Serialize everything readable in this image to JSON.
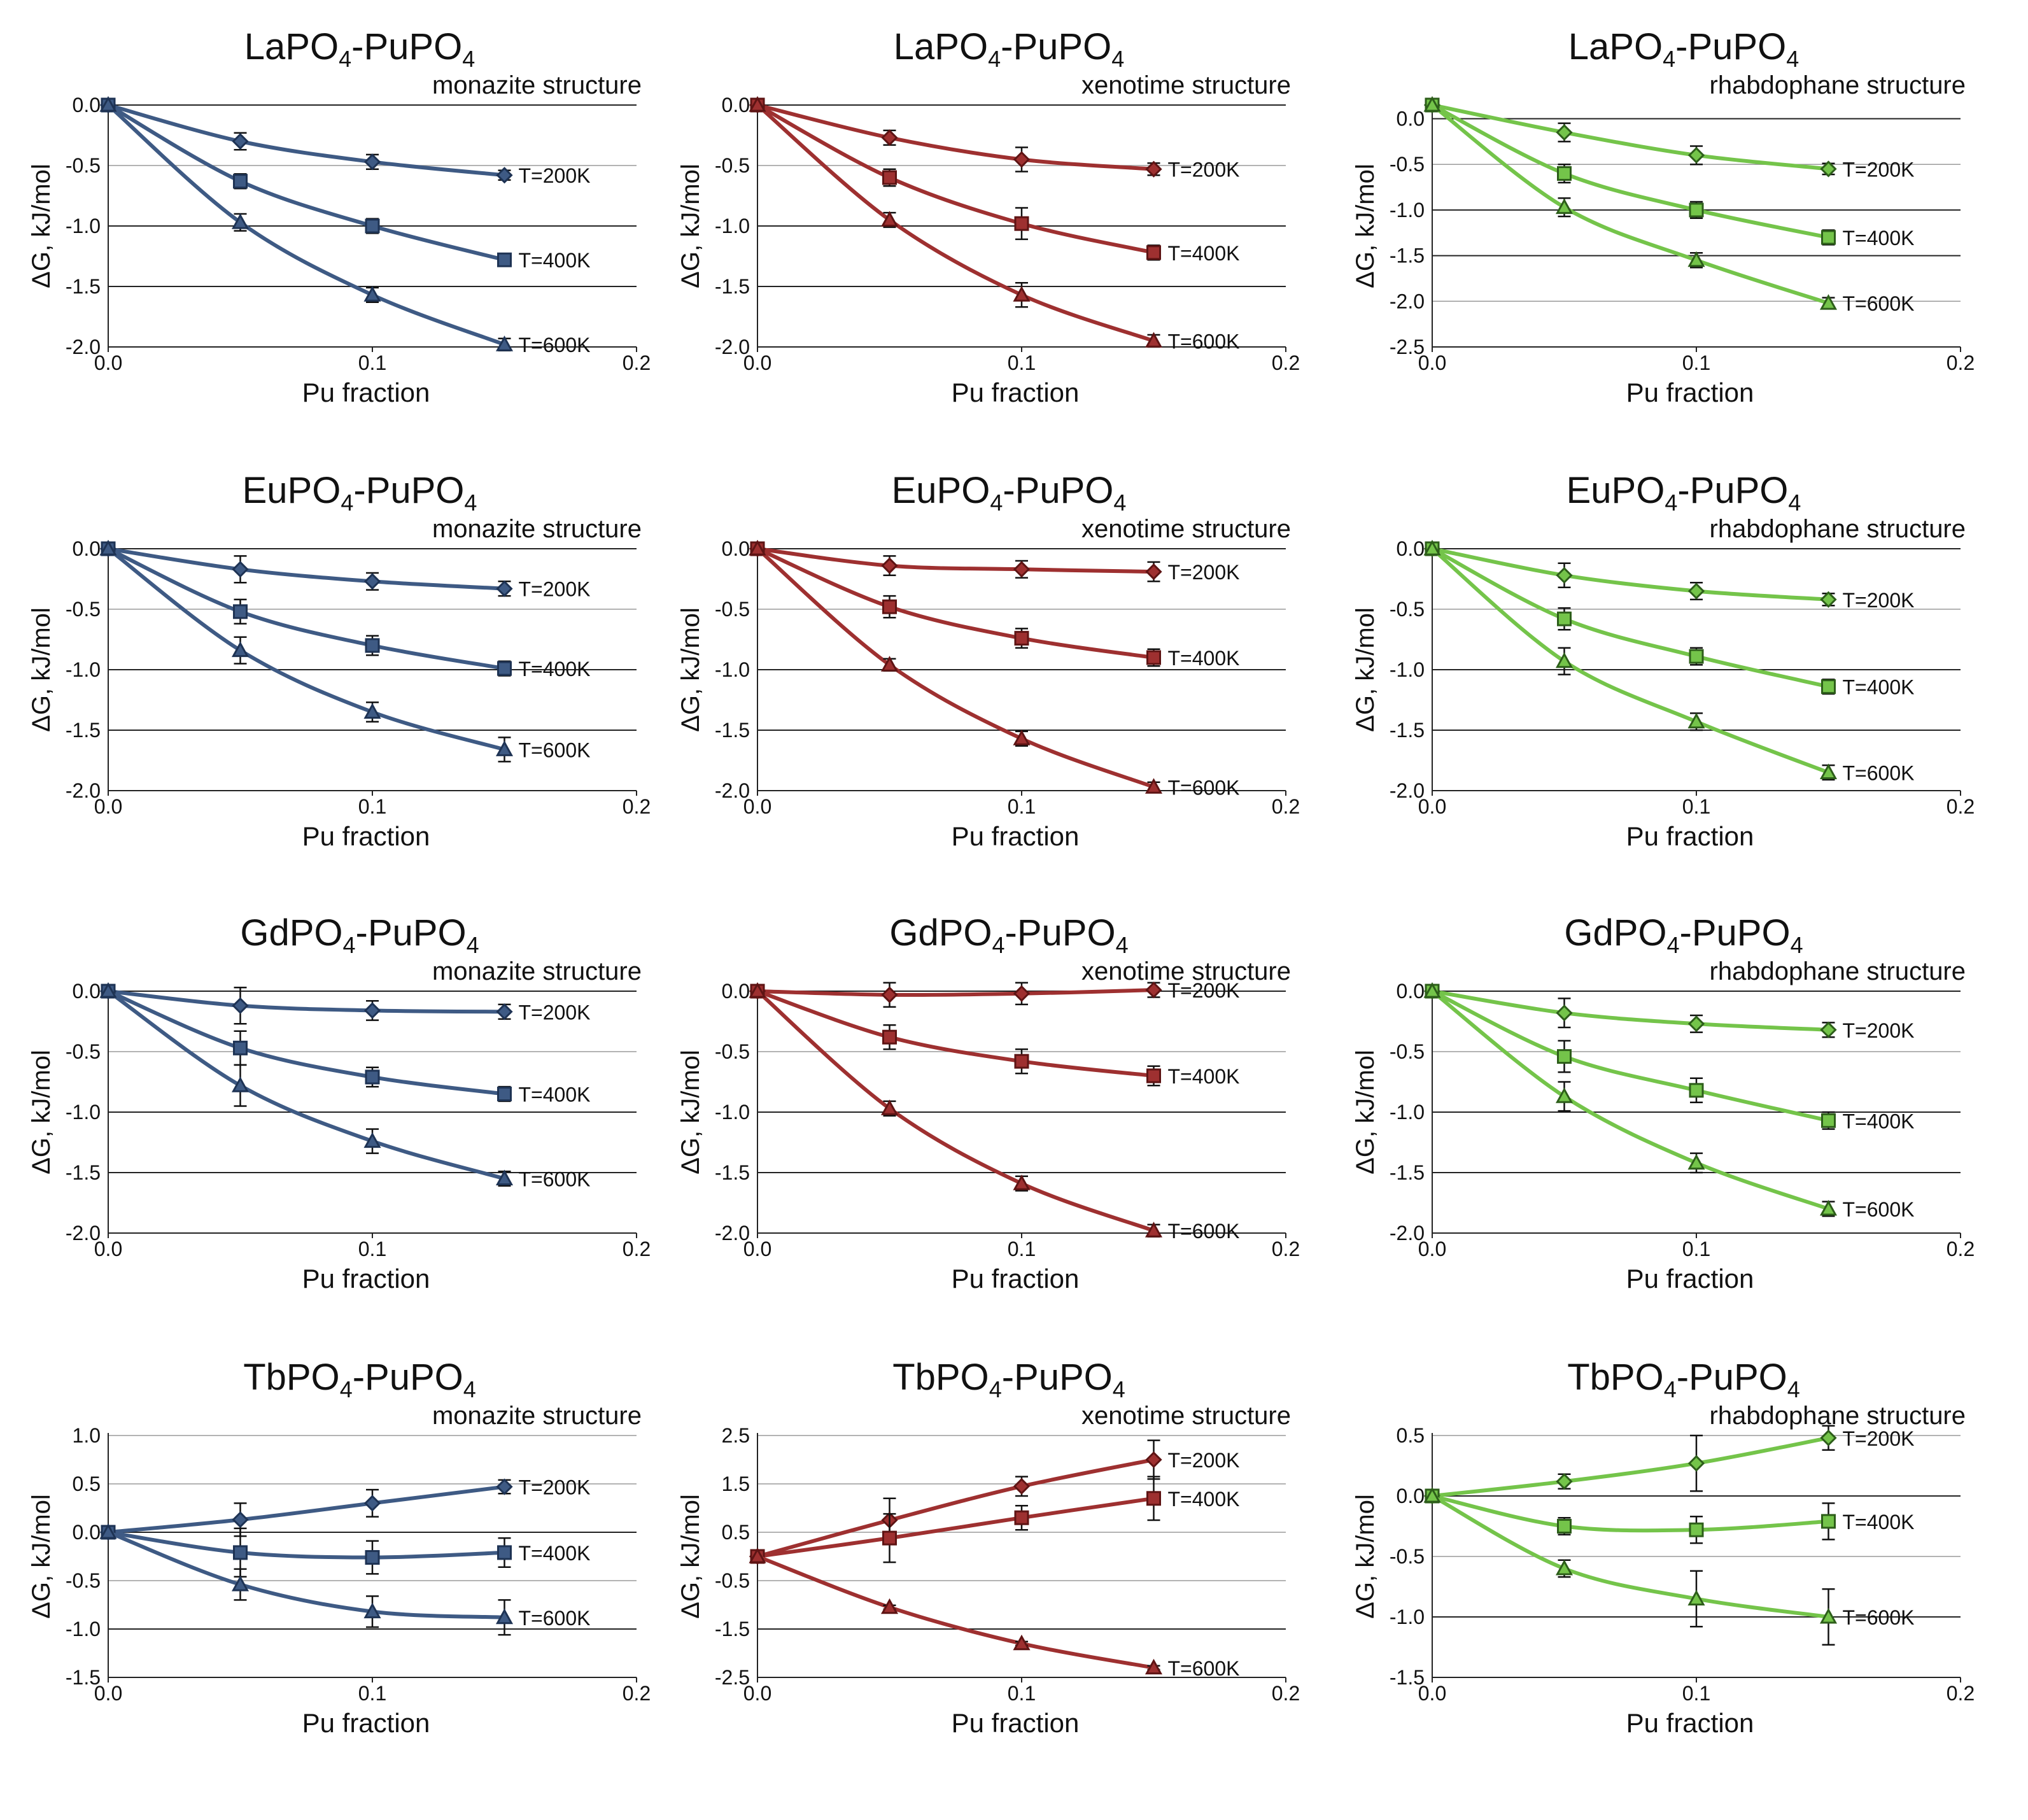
{
  "figure": {
    "axis_x_label": "Pu fraction",
    "axis_y_label": "ΔG, kJ/mol"
  },
  "chart_data": [
    {
      "type": "line",
      "title_parts": [
        "LaPO",
        "4",
        "-PuPO",
        "4"
      ],
      "structure": "monazite structure",
      "xlabel": "Pu fraction",
      "ylabel": "ΔG, kJ/mol",
      "xlim": [
        0,
        0.2
      ],
      "ylim": [
        -2.0,
        0.0
      ],
      "xticks": [
        "0.0",
        "0.1",
        "0.2"
      ],
      "yticks": [
        "0.0",
        "-0.5",
        "-1.0",
        "-1.5",
        "-2.0"
      ],
      "ytick_values": [
        0,
        -0.5,
        -1.0,
        -1.5,
        -2.0
      ],
      "color": "#3e5a84",
      "x": [
        0,
        0.05,
        0.1,
        0.15
      ],
      "series": [
        {
          "name": "T=200K",
          "marker": "diamond",
          "values": [
            0,
            -0.3,
            -0.47,
            -0.58
          ],
          "errors": [
            0,
            0.07,
            0.06,
            0.04
          ]
        },
        {
          "name": "T=400K",
          "marker": "square",
          "values": [
            0,
            -0.63,
            -1.0,
            -1.28
          ],
          "errors": [
            0,
            0.06,
            0.06,
            0.05
          ]
        },
        {
          "name": "T=600K",
          "marker": "triangle",
          "values": [
            0,
            -0.97,
            -1.57,
            -1.98
          ],
          "errors": [
            0,
            0.07,
            0.06,
            0.05
          ]
        }
      ]
    },
    {
      "type": "line",
      "title_parts": [
        "LaPO",
        "4",
        "-PuPO",
        "4"
      ],
      "structure": "xenotime structure",
      "xlabel": "Pu fraction",
      "ylabel": "ΔG, kJ/mol",
      "xlim": [
        0,
        0.2
      ],
      "ylim": [
        -2.0,
        0.0
      ],
      "xticks": [
        "0.0",
        "0.1",
        "0.2"
      ],
      "yticks": [
        "0.0",
        "-0.5",
        "-1.0",
        "-1.5",
        "-2.0"
      ],
      "ytick_values": [
        0,
        -0.5,
        -1.0,
        -1.5,
        -2.0
      ],
      "color": "#9e3030",
      "x": [
        0,
        0.05,
        0.1,
        0.15
      ],
      "series": [
        {
          "name": "T=200K",
          "marker": "diamond",
          "values": [
            0,
            -0.27,
            -0.45,
            -0.53
          ],
          "errors": [
            0,
            0.06,
            0.1,
            0.05
          ]
        },
        {
          "name": "T=400K",
          "marker": "square",
          "values": [
            0,
            -0.6,
            -0.98,
            -1.22
          ],
          "errors": [
            0,
            0.07,
            0.13,
            0.06
          ]
        },
        {
          "name": "T=600K",
          "marker": "triangle",
          "values": [
            0,
            -0.95,
            -1.57,
            -1.95
          ],
          "errors": [
            0,
            0.06,
            0.1,
            0.05
          ]
        }
      ]
    },
    {
      "type": "line",
      "title_parts": [
        "LaPO",
        "4",
        "-PuPO",
        "4"
      ],
      "structure": "rhabdophane structure",
      "xlabel": "Pu fraction",
      "ylabel": "ΔG, kJ/mol",
      "xlim": [
        0,
        0.2
      ],
      "ylim": [
        -2.5,
        0.15
      ],
      "xticks": [
        "0.0",
        "0.1",
        "0.2"
      ],
      "yticks": [
        "0.0",
        "-0.5",
        "-1.0",
        "-1.5",
        "-2.0",
        "-2.5"
      ],
      "ytick_values": [
        0,
        -0.5,
        -1.0,
        -1.5,
        -2.0,
        -2.5
      ],
      "color": "#74c44a",
      "x": [
        0,
        0.05,
        0.1,
        0.15
      ],
      "series": [
        {
          "name": "T=200K",
          "marker": "diamond",
          "values": [
            0.15,
            -0.15,
            -0.4,
            -0.55
          ],
          "errors": [
            0,
            0.1,
            0.1,
            0.06
          ]
        },
        {
          "name": "T=400K",
          "marker": "square",
          "values": [
            0.15,
            -0.6,
            -1.0,
            -1.3
          ],
          "errors": [
            0,
            0.1,
            0.09,
            0.08
          ]
        },
        {
          "name": "T=600K",
          "marker": "triangle",
          "values": [
            0.15,
            -0.97,
            -1.55,
            -2.02
          ],
          "errors": [
            0,
            0.1,
            0.08,
            0.06
          ]
        }
      ]
    },
    {
      "type": "line",
      "title_parts": [
        "EuPO",
        "4",
        "-PuPO",
        "4"
      ],
      "structure": "monazite structure",
      "xlabel": "Pu fraction",
      "ylabel": "ΔG, kJ/mol",
      "xlim": [
        0,
        0.2
      ],
      "ylim": [
        -2.0,
        0.0
      ],
      "xticks": [
        "0.0",
        "0.1",
        "0.2"
      ],
      "yticks": [
        "0.0",
        "-0.5",
        "-1.0",
        "-1.5",
        "-2.0"
      ],
      "ytick_values": [
        0,
        -0.5,
        -1.0,
        -1.5,
        -2.0
      ],
      "color": "#3e5a84",
      "x": [
        0,
        0.05,
        0.1,
        0.15
      ],
      "series": [
        {
          "name": "T=200K",
          "marker": "diamond",
          "values": [
            0,
            -0.17,
            -0.27,
            -0.33
          ],
          "errors": [
            0,
            0.11,
            0.07,
            0.06
          ]
        },
        {
          "name": "T=400K",
          "marker": "square",
          "values": [
            0,
            -0.52,
            -0.8,
            -0.99
          ],
          "errors": [
            0,
            0.1,
            0.08,
            0.06
          ]
        },
        {
          "name": "T=600K",
          "marker": "triangle",
          "values": [
            0,
            -0.84,
            -1.35,
            -1.66
          ],
          "errors": [
            0,
            0.11,
            0.08,
            0.1
          ]
        }
      ]
    },
    {
      "type": "line",
      "title_parts": [
        "EuPO",
        "4",
        "-PuPO",
        "4"
      ],
      "structure": "xenotime structure",
      "xlabel": "Pu fraction",
      "ylabel": "ΔG, kJ/mol",
      "xlim": [
        0,
        0.2
      ],
      "ylim": [
        -2.0,
        0.0
      ],
      "xticks": [
        "0.0",
        "0.1",
        "0.2"
      ],
      "yticks": [
        "0.0",
        "-0.5",
        "-1.0",
        "-1.5",
        "-2.0"
      ],
      "ytick_values": [
        0,
        -0.5,
        -1.0,
        -1.5,
        -2.0
      ],
      "color": "#9e3030",
      "x": [
        0,
        0.05,
        0.1,
        0.15
      ],
      "series": [
        {
          "name": "T=200K",
          "marker": "diamond",
          "values": [
            0,
            -0.14,
            -0.17,
            -0.19
          ],
          "errors": [
            0,
            0.08,
            0.07,
            0.08
          ]
        },
        {
          "name": "T=400K",
          "marker": "square",
          "values": [
            0,
            -0.48,
            -0.74,
            -0.9
          ],
          "errors": [
            0,
            0.09,
            0.08,
            0.07
          ]
        },
        {
          "name": "T=600K",
          "marker": "triangle",
          "values": [
            0,
            -0.96,
            -1.57,
            -1.97
          ],
          "errors": [
            0,
            0.05,
            0.06,
            0.04
          ]
        }
      ]
    },
    {
      "type": "line",
      "title_parts": [
        "EuPO",
        "4",
        "-PuPO",
        "4"
      ],
      "structure": "rhabdophane structure",
      "xlabel": "Pu fraction",
      "ylabel": "ΔG, kJ/mol",
      "xlim": [
        0,
        0.2
      ],
      "ylim": [
        -2.0,
        0.0
      ],
      "xticks": [
        "0.0",
        "0.1",
        "0.2"
      ],
      "yticks": [
        "0.0",
        "-0.5",
        "-1.0",
        "-1.5",
        "-2.0"
      ],
      "ytick_values": [
        0,
        -0.5,
        -1.0,
        -1.5,
        -2.0
      ],
      "color": "#74c44a",
      "x": [
        0,
        0.05,
        0.1,
        0.15
      ],
      "series": [
        {
          "name": "T=200K",
          "marker": "diamond",
          "values": [
            0,
            -0.22,
            -0.35,
            -0.42
          ],
          "errors": [
            0,
            0.1,
            0.07,
            0.05
          ]
        },
        {
          "name": "T=400K",
          "marker": "square",
          "values": [
            0,
            -0.58,
            -0.89,
            -1.14
          ],
          "errors": [
            0,
            0.09,
            0.07,
            0.06
          ]
        },
        {
          "name": "T=600K",
          "marker": "triangle",
          "values": [
            0,
            -0.93,
            -1.43,
            -1.85
          ],
          "errors": [
            0,
            0.11,
            0.07,
            0.06
          ]
        }
      ]
    },
    {
      "type": "line",
      "title_parts": [
        "GdPO",
        "4",
        "-PuPO",
        "4"
      ],
      "structure": "monazite structure",
      "xlabel": "Pu fraction",
      "ylabel": "ΔG, kJ/mol",
      "xlim": [
        0,
        0.2
      ],
      "ylim": [
        -2.0,
        0.0
      ],
      "xticks": [
        "0.0",
        "0.1",
        "0.2"
      ],
      "yticks": [
        "0.0",
        "-0.5",
        "-1.0",
        "-1.5",
        "-2.0"
      ],
      "ytick_values": [
        0,
        -0.5,
        -1.0,
        -1.5,
        -2.0
      ],
      "color": "#3e5a84",
      "x": [
        0,
        0.05,
        0.1,
        0.15
      ],
      "series": [
        {
          "name": "T=200K",
          "marker": "diamond",
          "values": [
            0,
            -0.12,
            -0.16,
            -0.17
          ],
          "errors": [
            0,
            0.15,
            0.08,
            0.06
          ]
        },
        {
          "name": "T=400K",
          "marker": "square",
          "values": [
            0,
            -0.47,
            -0.71,
            -0.85
          ],
          "errors": [
            0,
            0.14,
            0.08,
            0.06
          ]
        },
        {
          "name": "T=600K",
          "marker": "triangle",
          "values": [
            0,
            -0.78,
            -1.24,
            -1.55
          ],
          "errors": [
            0,
            0.17,
            0.1,
            0.06
          ]
        }
      ]
    },
    {
      "type": "line",
      "title_parts": [
        "GdPO",
        "4",
        "-PuPO",
        "4"
      ],
      "structure": "xenotime structure",
      "xlabel": "Pu fraction",
      "ylabel": "ΔG, kJ/mol",
      "xlim": [
        0,
        0.2
      ],
      "ylim": [
        -2.0,
        0.0
      ],
      "xticks": [
        "0.0",
        "0.1",
        "0.2"
      ],
      "yticks": [
        "0.0",
        "-0.5",
        "-1.0",
        "-1.5",
        "-2.0"
      ],
      "ytick_values": [
        0,
        -0.5,
        -1.0,
        -1.5,
        -2.0
      ],
      "color": "#9e3030",
      "x": [
        0,
        0.05,
        0.1,
        0.15
      ],
      "series": [
        {
          "name": "T=200K",
          "marker": "diamond",
          "values": [
            0,
            -0.03,
            -0.02,
            0.01
          ],
          "errors": [
            0,
            0.1,
            0.09,
            0.06
          ]
        },
        {
          "name": "T=400K",
          "marker": "square",
          "values": [
            0,
            -0.38,
            -0.58,
            -0.7
          ],
          "errors": [
            0,
            0.1,
            0.1,
            0.08
          ]
        },
        {
          "name": "T=600K",
          "marker": "triangle",
          "values": [
            0,
            -0.97,
            -1.59,
            -1.98
          ],
          "errors": [
            0,
            0.06,
            0.06,
            0.05
          ]
        }
      ]
    },
    {
      "type": "line",
      "title_parts": [
        "GdPO",
        "4",
        "-PuPO",
        "4"
      ],
      "structure": "rhabdophane structure",
      "xlabel": "Pu fraction",
      "ylabel": "ΔG, kJ/mol",
      "xlim": [
        0,
        0.2
      ],
      "ylim": [
        -2.0,
        0.0
      ],
      "xticks": [
        "0.0",
        "0.1",
        "0.2"
      ],
      "yticks": [
        "0.0",
        "-0.5",
        "-1.0",
        "-1.5",
        "-2.0"
      ],
      "ytick_values": [
        0,
        -0.5,
        -1.0,
        -1.5,
        -2.0
      ],
      "color": "#74c44a",
      "x": [
        0,
        0.05,
        0.1,
        0.15
      ],
      "series": [
        {
          "name": "T=200K",
          "marker": "diamond",
          "values": [
            0,
            -0.18,
            -0.27,
            -0.32
          ],
          "errors": [
            0,
            0.12,
            0.07,
            0.06
          ]
        },
        {
          "name": "T=400K",
          "marker": "square",
          "values": [
            0,
            -0.54,
            -0.82,
            -1.07
          ],
          "errors": [
            0,
            0.13,
            0.1,
            0.07
          ]
        },
        {
          "name": "T=600K",
          "marker": "triangle",
          "values": [
            0,
            -0.87,
            -1.42,
            -1.8
          ],
          "errors": [
            0,
            0.12,
            0.08,
            0.06
          ]
        }
      ]
    },
    {
      "type": "line",
      "title_parts": [
        "TbPO",
        "4",
        "-PuPO",
        "4"
      ],
      "structure": "monazite structure",
      "xlabel": "Pu fraction",
      "ylabel": "ΔG, kJ/mol",
      "xlim": [
        0,
        0.2
      ],
      "ylim": [
        -1.5,
        1.0
      ],
      "xticks": [
        "0.0",
        "0.1",
        "0.2"
      ],
      "yticks": [
        "1.0",
        "0.5",
        "0.0",
        "-0.5",
        "-1.0",
        "-1.5"
      ],
      "ytick_values": [
        1.0,
        0.5,
        0.0,
        -0.5,
        -1.0,
        -1.5
      ],
      "color": "#3e5a84",
      "x": [
        0,
        0.05,
        0.1,
        0.15
      ],
      "series": [
        {
          "name": "T=200K",
          "marker": "diamond",
          "values": [
            0,
            0.13,
            0.3,
            0.47
          ],
          "errors": [
            0,
            0.17,
            0.14,
            0.07
          ]
        },
        {
          "name": "T=400K",
          "marker": "square",
          "values": [
            0,
            -0.21,
            -0.26,
            -0.21
          ],
          "errors": [
            0,
            0.25,
            0.17,
            0.15
          ]
        },
        {
          "name": "T=600K",
          "marker": "triangle",
          "values": [
            0,
            -0.54,
            -0.82,
            -0.88
          ],
          "errors": [
            0,
            0.16,
            0.16,
            0.18
          ]
        }
      ]
    },
    {
      "type": "line",
      "title_parts": [
        "TbPO",
        "4",
        "-PuPO",
        "4"
      ],
      "structure": "xenotime structure",
      "xlabel": "Pu fraction",
      "ylabel": "ΔG, kJ/mol",
      "xlim": [
        0,
        0.2
      ],
      "ylim": [
        -2.5,
        2.5
      ],
      "xticks": [
        "0.0",
        "0.1",
        "0.2"
      ],
      "yticks": [
        "2.5",
        "1.5",
        "0.5",
        "-0.5",
        "-1.5",
        "-2.5"
      ],
      "ytick_values": [
        2.5,
        1.5,
        0.5,
        -0.5,
        -1.5,
        -2.5
      ],
      "color": "#9e3030",
      "x": [
        0,
        0.05,
        0.1,
        0.15
      ],
      "series": [
        {
          "name": "T=200K",
          "marker": "diamond",
          "values": [
            0,
            0.75,
            1.45,
            2.0
          ],
          "errors": [
            0,
            0.45,
            0.2,
            0.4
          ]
        },
        {
          "name": "T=400K",
          "marker": "square",
          "values": [
            0,
            0.38,
            0.8,
            1.2
          ],
          "errors": [
            0,
            0.5,
            0.25,
            0.45
          ]
        },
        {
          "name": "T=600K",
          "marker": "triangle",
          "values": [
            0,
            -1.05,
            -1.8,
            -2.3
          ],
          "errors": [
            0,
            0.04,
            0.04,
            0.04
          ]
        }
      ]
    },
    {
      "type": "line",
      "title_parts": [
        "TbPO",
        "4",
        "-PuPO",
        "4"
      ],
      "structure": "rhabdophane structure",
      "xlabel": "Pu fraction",
      "ylabel": "ΔG, kJ/mol",
      "xlim": [
        0,
        0.2
      ],
      "ylim": [
        -1.5,
        0.5
      ],
      "xticks": [
        "0.0",
        "0.1",
        "0.2"
      ],
      "yticks": [
        "0.5",
        "0.0",
        "-0.5",
        "-1.0",
        "-1.5"
      ],
      "ytick_values": [
        0.5,
        0.0,
        -0.5,
        -1.0,
        -1.5
      ],
      "color": "#74c44a",
      "x": [
        0,
        0.05,
        0.1,
        0.15
      ],
      "series": [
        {
          "name": "T=200K",
          "marker": "diamond",
          "values": [
            0,
            0.12,
            0.27,
            0.48
          ],
          "errors": [
            0,
            0.06,
            0.23,
            0.1
          ]
        },
        {
          "name": "T=400K",
          "marker": "square",
          "values": [
            0,
            -0.25,
            -0.28,
            -0.21
          ],
          "errors": [
            0,
            0.07,
            0.11,
            0.15
          ]
        },
        {
          "name": "T=600K",
          "marker": "triangle",
          "values": [
            0,
            -0.6,
            -0.85,
            -1.0
          ],
          "errors": [
            0,
            0.07,
            0.23,
            0.23
          ]
        }
      ]
    }
  ]
}
